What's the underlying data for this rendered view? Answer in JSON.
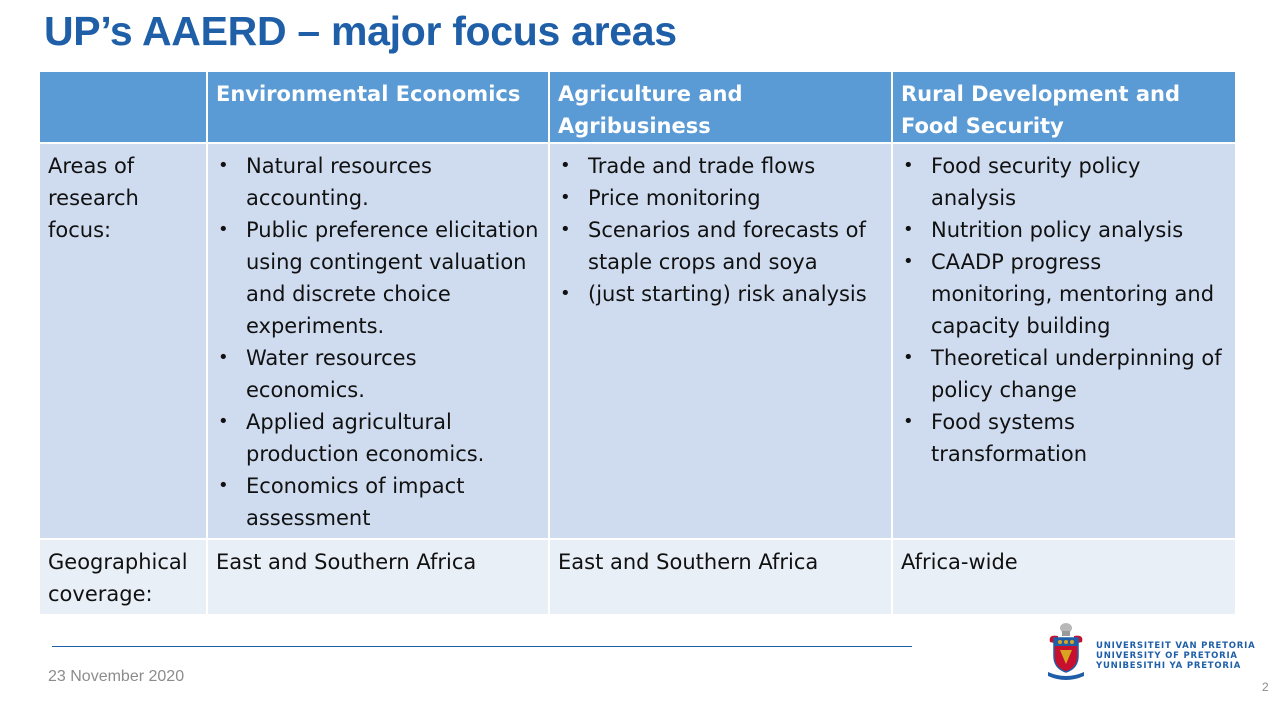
{
  "slide": {
    "title": "UP’s AAERD – major focus areas",
    "date": "23 November 2020",
    "page_number": "2"
  },
  "table": {
    "headers": [
      "",
      "Environmental Economics",
      "Agriculture and Agribusiness",
      "Rural Development and Food Security"
    ],
    "rows": {
      "research_focus": {
        "label": "Areas of research focus:",
        "environmental": [
          "Natural resources accounting.",
          "Public preference elicitation using contingent valuation and discrete choice experiments.",
          "Water resources economics.",
          "Applied agricultural production economics.",
          "Economics of impact assessment"
        ],
        "agriculture": [
          "Trade and trade flows",
          "Price monitoring",
          "Scenarios and forecasts of staple crops and soya",
          "(just starting) risk analysis"
        ],
        "rural": [
          "Food security policy analysis",
          "Nutrition policy analysis",
          "CAADP progress monitoring, mentoring and capacity building",
          "Theoretical underpinning of policy change",
          "Food systems transformation"
        ]
      },
      "geographical_coverage": {
        "label": "Geographical coverage:",
        "environmental": "East and Southern Africa",
        "agriculture": "East and Southern Africa",
        "rural": "Africa-wide"
      }
    }
  },
  "logo": {
    "icon": "university-crest-icon",
    "lines": [
      "UNIVERSITEIT VAN PRETORIA",
      "UNIVERSITY OF PRETORIA",
      "YUNIBESITHI YA PRETORIA"
    ],
    "colors": {
      "blue": "#1f5fa8",
      "red": "#c8102e",
      "gold": "#d9a520"
    }
  },
  "colors": {
    "title": "#1f5fa8",
    "header_bg": "#5b9bd5",
    "row_dark": "#cfdcef",
    "row_light": "#e9eff7"
  }
}
